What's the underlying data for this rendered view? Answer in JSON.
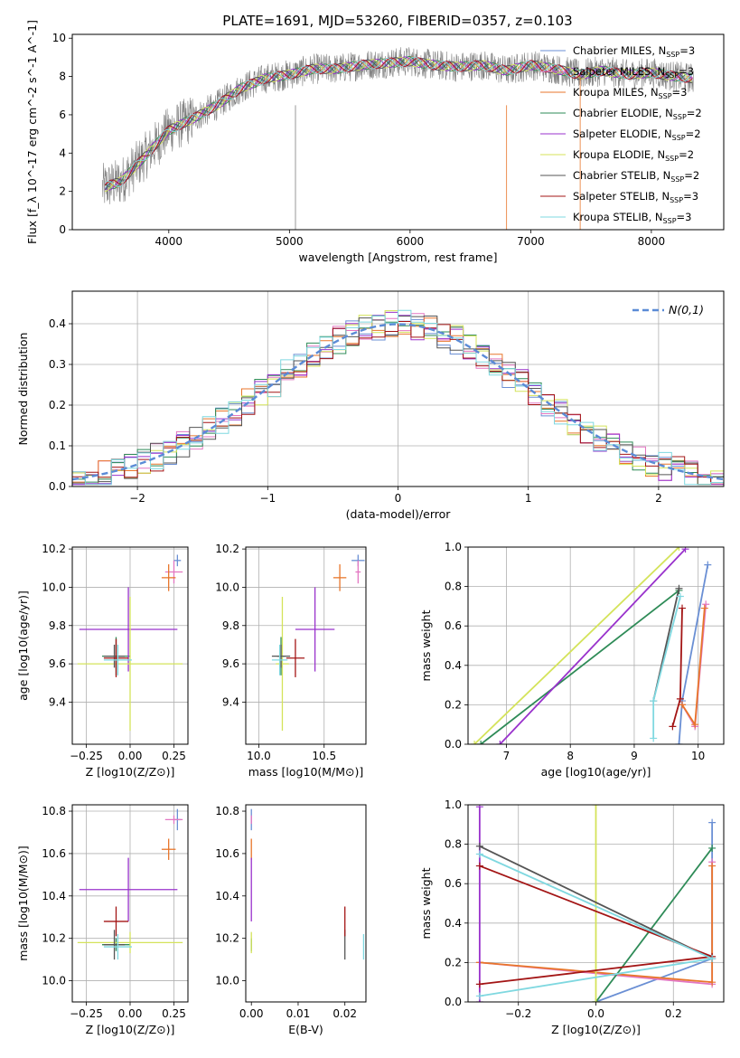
{
  "figure": {
    "title": "PLATE=1691, MJD=53260, FIBERID=0357, z=0.103"
  },
  "models": [
    {
      "name": "Chabrier MILES",
      "nssp": "3",
      "color": "#6a8fd4"
    },
    {
      "name": "Salpeter MILES",
      "nssp": "3",
      "color": "#e377c2"
    },
    {
      "name": "Kroupa MILES",
      "nssp": "3",
      "color": "#e8762b"
    },
    {
      "name": "Chabrier ELODIE",
      "nssp": "2",
      "color": "#2e8b57"
    },
    {
      "name": "Salpeter ELODIE",
      "nssp": "2",
      "color": "#9932cc"
    },
    {
      "name": "Kroupa ELODIE",
      "nssp": "2",
      "color": "#d4e35a"
    },
    {
      "name": "Chabrier STELIB",
      "nssp": "2",
      "color": "#555555"
    },
    {
      "name": "Salpeter STELIB",
      "nssp": "3",
      "color": "#a31515"
    },
    {
      "name": "Kroupa STELIB",
      "nssp": "3",
      "color": "#7fd8e0"
    }
  ],
  "chart_data": [
    {
      "id": "spectrum",
      "type": "line",
      "xlabel": "wavelength [Angstrom, rest frame]",
      "ylabel": "Flux [f_λ 10^-17 erg cm^-2 s^-1 A^-1]",
      "xlim": [
        3200,
        8600
      ],
      "ylim": [
        0,
        10.2
      ],
      "xticks": [
        "4000",
        "5000",
        "6000",
        "7000",
        "8000"
      ],
      "yticks": [
        "0",
        "2",
        "4",
        "6",
        "8",
        "10"
      ],
      "grid": false,
      "legend": "right",
      "data_trend": {
        "x": [
          3450,
          3600,
          3800,
          4000,
          4200,
          4400,
          4600,
          4800,
          5000,
          5200,
          5400,
          5600,
          5800,
          6000,
          6200,
          6400,
          6600,
          6800,
          7000,
          7200,
          7400,
          7600,
          7800,
          8000,
          8200,
          8350
        ],
        "y": [
          2.2,
          2.5,
          3.8,
          5.2,
          5.8,
          6.5,
          7.4,
          7.9,
          8.1,
          8.4,
          8.4,
          8.6,
          8.7,
          8.8,
          8.6,
          8.5,
          8.6,
          8.3,
          8.6,
          8.4,
          8.1,
          8.3,
          8.1,
          8.2,
          8.0,
          7.9
        ]
      }
    },
    {
      "id": "residuals",
      "type": "line",
      "xlabel": "(data-model)/error",
      "ylabel": "Normed distribution",
      "xlim": [
        -2.5,
        2.5
      ],
      "ylim": [
        0,
        0.48
      ],
      "xticks": [
        "−2",
        "−1",
        "0",
        "1",
        "2"
      ],
      "yticks": [
        "0.0",
        "0.1",
        "0.2",
        "0.3",
        "0.4"
      ],
      "grid": true,
      "legend_label": "N(0,1)",
      "normal_curve": {
        "mean": 0,
        "sigma": 1
      }
    },
    {
      "id": "age_vs_Z",
      "type": "scatter",
      "xlabel": "Z [log10(Z/Z⊙)]",
      "ylabel": "age [log10(age/yr)]",
      "xlim": [
        -0.33,
        0.33
      ],
      "ylim": [
        9.18,
        10.21
      ],
      "xticks": [
        "−0.25",
        "0.00",
        "0.25"
      ],
      "yticks": [
        "9.4",
        "9.6",
        "9.8",
        "10.0",
        "10.2"
      ],
      "grid": true
    },
    {
      "id": "age_vs_mass",
      "type": "scatter",
      "xlabel": "mass [log10(M/M⊙)]",
      "ylabel": "",
      "xlim": [
        9.9,
        10.82
      ],
      "ylim": [
        9.18,
        10.21
      ],
      "xticks": [
        "10.0",
        "10.5"
      ],
      "yticks": [
        "9.4",
        "9.6",
        "9.8",
        "10.0",
        "10.2"
      ],
      "grid": true
    },
    {
      "id": "weight_vs_age",
      "type": "line",
      "xlabel": "age [log10(age/yr)]",
      "ylabel": "mass weight",
      "xlim": [
        6.4,
        10.4
      ],
      "ylim": [
        0,
        1
      ],
      "xticks": [
        "7",
        "8",
        "9",
        "10"
      ],
      "yticks": [
        "0.0",
        "0.2",
        "0.4",
        "0.6",
        "0.8",
        "1.0"
      ],
      "grid": true
    },
    {
      "id": "mass_vs_Z",
      "type": "scatter",
      "xlabel": "Z [log10(Z/Z⊙)]",
      "ylabel": "mass [log10(M/M⊙)]",
      "xlim": [
        -0.33,
        0.33
      ],
      "ylim": [
        9.9,
        10.83
      ],
      "xticks": [
        "−0.25",
        "0.00",
        "0.25"
      ],
      "yticks": [
        "10.0",
        "10.2",
        "10.4",
        "10.6",
        "10.8"
      ],
      "grid": true
    },
    {
      "id": "mass_vs_ebv",
      "type": "scatter",
      "xlabel": "E(B-V)",
      "ylabel": "",
      "xlim": [
        -0.0012,
        0.0245
      ],
      "ylim": [
        9.9,
        10.83
      ],
      "xticks": [
        "0.00",
        "0.01",
        "0.02"
      ],
      "yticks": [
        "10.0",
        "10.2",
        "10.4",
        "10.6",
        "10.8"
      ],
      "grid": false
    },
    {
      "id": "weight_vs_Z",
      "type": "line",
      "xlabel": "Z [log10(Z/Z⊙)]",
      "ylabel": "mass weight",
      "xlim": [
        -0.33,
        0.33
      ],
      "ylim": [
        0,
        1
      ],
      "xticks": [
        "−0.2",
        "0.0",
        "0.2"
      ],
      "yticks": [
        "0.0",
        "0.2",
        "0.4",
        "0.6",
        "0.8",
        "1.0"
      ],
      "grid": true
    }
  ],
  "fits": [
    {
      "model": 0,
      "Z": 0.27,
      "Zerr": 0.02,
      "age": 10.14,
      "ageerr": 0.03,
      "mass": 10.76,
      "masserr": 0.05,
      "ebv": 0.0,
      "ebverr": 0.0,
      "comps": [
        {
          "age": 9.7,
          "Z": 0.0,
          "w": 0.0
        },
        {
          "age": 9.75,
          "Z": 0.3,
          "w": 0.22
        },
        {
          "age": 10.15,
          "Z": 0.3,
          "w": 0.91
        }
      ]
    },
    {
      "model": 1,
      "Z": 0.25,
      "Zerr": 0.05,
      "age": 10.08,
      "ageerr": 0.06,
      "mass": 10.76,
      "masserr": 0.02,
      "ebv": 0.0,
      "ebverr": 0.0,
      "comps": [
        {
          "age": 9.75,
          "Z": -0.3,
          "w": 0.2
        },
        {
          "age": 9.95,
          "Z": 0.3,
          "w": 0.09
        },
        {
          "age": 10.12,
          "Z": 0.3,
          "w": 0.71
        }
      ]
    },
    {
      "model": 2,
      "Z": 0.22,
      "Zerr": 0.04,
      "age": 10.05,
      "ageerr": 0.07,
      "mass": 10.62,
      "masserr": 0.05,
      "ebv": 0.0,
      "ebverr": 0.0,
      "comps": [
        {
          "age": 9.75,
          "Z": -0.3,
          "w": 0.2
        },
        {
          "age": 9.95,
          "Z": 0.3,
          "w": 0.1
        },
        {
          "age": 10.1,
          "Z": 0.3,
          "w": 0.69
        }
      ]
    },
    {
      "model": 3,
      "Z": -0.08,
      "Zerr": 0.08,
      "age": 9.64,
      "ageerr": 0.1,
      "mass": 10.17,
      "masserr": 0.03,
      "ebv": 0.0,
      "ebverr": 0.0,
      "comps": [
        {
          "age": 6.6,
          "Z": 0.0,
          "w": 0.0
        },
        {
          "age": 9.7,
          "Z": 0.3,
          "w": 0.78
        }
      ]
    },
    {
      "model": 4,
      "Z": -0.01,
      "Zerr": 0.28,
      "age": 9.78,
      "ageerr": 0.22,
      "mass": 10.43,
      "masserr": 0.15,
      "ebv": 0.0,
      "ebverr": 0.0,
      "comps": [
        {
          "age": 6.9,
          "Z": -0.3,
          "w": 0.0
        },
        {
          "age": 9.8,
          "Z": -0.3,
          "w": 0.99
        }
      ]
    },
    {
      "model": 5,
      "Z": 0.0,
      "Zerr": 0.3,
      "age": 9.6,
      "ageerr": 0.35,
      "mass": 10.18,
      "masserr": 0.05,
      "ebv": 0.0,
      "ebverr": 0.0,
      "comps": [
        {
          "age": 6.5,
          "Z": 0.0,
          "w": 0.0
        },
        {
          "age": 9.7,
          "Z": 0.0,
          "w": 1.0
        }
      ]
    },
    {
      "model": 6,
      "Z": -0.09,
      "Zerr": 0.06,
      "age": 9.64,
      "ageerr": 0.06,
      "mass": 10.17,
      "masserr": 0.07,
      "ebv": 0.02,
      "ebverr": 0.0,
      "comps": [
        {
          "age": 9.3,
          "Z": 0.3,
          "w": 0.22
        },
        {
          "age": 9.7,
          "Z": -0.3,
          "w": 0.79
        }
      ]
    },
    {
      "model": 7,
      "Z": -0.08,
      "Zerr": 0.07,
      "age": 9.63,
      "ageerr": 0.1,
      "mass": 10.28,
      "masserr": 0.07,
      "ebv": 0.02,
      "ebverr": 0.0,
      "comps": [
        {
          "age": 9.6,
          "Z": -0.3,
          "w": 0.09
        },
        {
          "age": 9.72,
          "Z": 0.3,
          "w": 0.23
        },
        {
          "age": 9.75,
          "Z": -0.3,
          "w": 0.69
        }
      ]
    },
    {
      "model": 8,
      "Z": -0.07,
      "Zerr": 0.08,
      "age": 9.62,
      "ageerr": 0.08,
      "mass": 10.16,
      "masserr": 0.06,
      "ebv": 0.024,
      "ebverr": 0.0,
      "comps": [
        {
          "age": 9.3,
          "Z": -0.3,
          "w": 0.03
        },
        {
          "age": 9.3,
          "Z": 0.3,
          "w": 0.22
        },
        {
          "age": 9.72,
          "Z": -0.3,
          "w": 0.75
        }
      ]
    }
  ]
}
